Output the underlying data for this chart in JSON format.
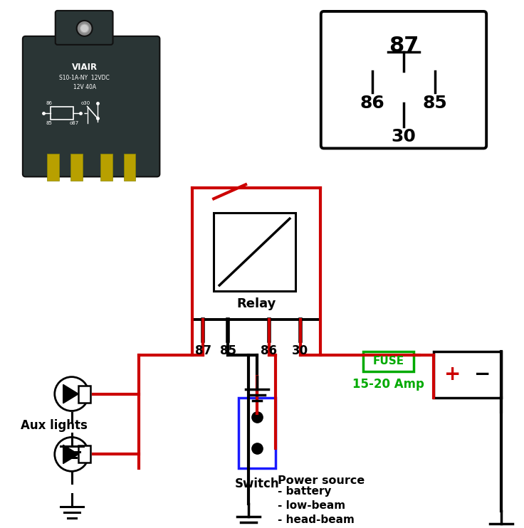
{
  "bg_color": "#ffffff",
  "relay_label": "Relay",
  "fuse_label": "FUSE",
  "fuse_amp": "15-20 Amp",
  "aux_label": "Aux lights",
  "switch_label": "Switch",
  "power_label": "Power source",
  "power_items": [
    "- battery",
    "- low-beam",
    "- head-beam"
  ],
  "pin_labels": [
    "87",
    "85",
    "86",
    "30"
  ],
  "diag_label_87": "87",
  "diag_label_86": "86",
  "diag_label_85": "85",
  "diag_label_30": "30",
  "wire_red": "#cc0000",
  "wire_black": "#000000",
  "wire_blue": "#1a1aff",
  "fuse_green": "#00aa00",
  "relay_dark": "#2a3535",
  "relay_mid": "#3a4545",
  "pin_gold": "#b8a000",
  "viair_text": "VIAIR",
  "viair_sub1": "S10-1A-NY  12VDC",
  "viair_sub2": "12V 40A"
}
